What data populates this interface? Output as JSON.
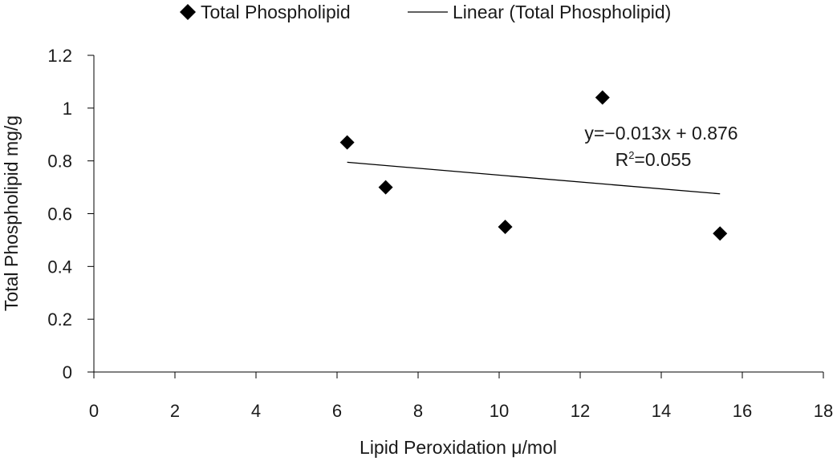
{
  "chart_data": {
    "type": "scatter",
    "title": "",
    "xlabel": "Lipid Peroxidation μ/mol",
    "ylabel": "Total Phospholipid mg/g",
    "xlim": [
      0,
      18
    ],
    "ylim": [
      0,
      1.2
    ],
    "x_ticks": [
      0,
      2,
      4,
      6,
      8,
      10,
      12,
      14,
      16,
      18
    ],
    "y_ticks": [
      0,
      0.2,
      0.4,
      0.6,
      0.8,
      1,
      1.2
    ],
    "x_tick_labels": [
      "0",
      "2",
      "4",
      "6",
      "8",
      "10",
      "12",
      "14",
      "16",
      "18"
    ],
    "y_tick_labels": [
      "0",
      "0.2",
      "0.4",
      "0.6",
      "0.8",
      "1",
      "1.2"
    ],
    "grid": false,
    "legend_position": "top",
    "series": [
      {
        "name": "Total Phospholipid",
        "marker": "diamond",
        "color": "#000000",
        "x": [
          6.25,
          7.2,
          10.15,
          12.55,
          15.45
        ],
        "y": [
          0.87,
          0.7,
          0.55,
          1.04,
          0.525
        ]
      }
    ],
    "trendline": {
      "name": "Linear (Total Phospholipid)",
      "type": "linear",
      "slope": -0.013,
      "intercept": 0.876,
      "x_range": [
        6.25,
        15.45
      ],
      "color": "#000000"
    },
    "annotations": {
      "equation": "y=−0.013x + 0.876",
      "r_squared_prefix": "R",
      "r_squared_exp": "2",
      "r_squared_value": "=0.055"
    }
  }
}
